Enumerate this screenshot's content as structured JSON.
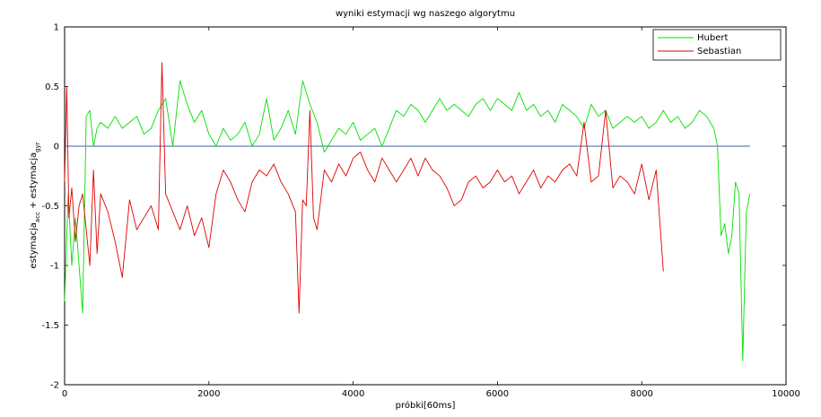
{
  "chart_data": {
    "type": "line",
    "title": "wyniki estymacji wg naszego algorytmu",
    "xlabel": "próbki[60ms]",
    "ylabel_main": "estymacja",
    "ylabel_sub1": "acc",
    "ylabel_plus": " + estymacja",
    "ylabel_sub2": "gyr",
    "xlim": [
      0,
      10000
    ],
    "ylim": [
      -2,
      1
    ],
    "xticks": [
      0,
      2000,
      4000,
      6000,
      8000,
      10000
    ],
    "yticks": [
      -2,
      -1.5,
      -1,
      -0.5,
      0,
      0.5,
      1
    ],
    "xtick_labels": [
      "0",
      "2000",
      "4000",
      "6000",
      "8000",
      "10000"
    ],
    "ytick_labels": [
      "-2",
      "-1.5",
      "-1",
      "-0.5",
      "0",
      "0.5",
      "1"
    ],
    "legend_position": "top-right",
    "grid": false,
    "zero_line_color": "#3a5fa8",
    "series": [
      {
        "name": "Hubert",
        "color": "#00e000",
        "x": [
          0,
          50,
          100,
          150,
          200,
          250,
          300,
          350,
          400,
          450,
          500,
          600,
          700,
          800,
          900,
          1000,
          1100,
          1200,
          1300,
          1400,
          1500,
          1600,
          1700,
          1800,
          1900,
          2000,
          2100,
          2200,
          2300,
          2400,
          2500,
          2600,
          2700,
          2800,
          2900,
          3000,
          3100,
          3200,
          3300,
          3400,
          3500,
          3600,
          3700,
          3800,
          3900,
          4000,
          4100,
          4200,
          4300,
          4400,
          4500,
          4600,
          4700,
          4800,
          4900,
          5000,
          5100,
          5200,
          5300,
          5400,
          5500,
          5600,
          5700,
          5800,
          5900,
          6000,
          6100,
          6200,
          6300,
          6400,
          6500,
          6600,
          6700,
          6800,
          6900,
          7000,
          7100,
          7200,
          7300,
          7400,
          7500,
          7600,
          7700,
          7800,
          7900,
          8000,
          8100,
          8200,
          8300,
          8400,
          8500,
          8600,
          8700,
          8800,
          8900,
          9000,
          9050,
          9100,
          9150,
          9200,
          9250,
          9300,
          9350,
          9400,
          9450,
          9500
        ],
        "y": [
          -1.3,
          -0.4,
          -1.0,
          -0.6,
          -1.0,
          -1.4,
          0.25,
          0.3,
          0.0,
          0.15,
          0.2,
          0.15,
          0.25,
          0.15,
          0.2,
          0.25,
          0.1,
          0.15,
          0.3,
          0.4,
          0.0,
          0.55,
          0.35,
          0.2,
          0.3,
          0.1,
          0.0,
          0.15,
          0.05,
          0.1,
          0.2,
          0.0,
          0.1,
          0.4,
          0.05,
          0.15,
          0.3,
          0.1,
          0.55,
          0.35,
          0.2,
          -0.05,
          0.05,
          0.15,
          0.1,
          0.2,
          0.05,
          0.1,
          0.15,
          0.0,
          0.15,
          0.3,
          0.25,
          0.35,
          0.3,
          0.2,
          0.3,
          0.4,
          0.3,
          0.35,
          0.3,
          0.25,
          0.35,
          0.4,
          0.3,
          0.4,
          0.35,
          0.3,
          0.45,
          0.3,
          0.35,
          0.25,
          0.3,
          0.2,
          0.35,
          0.3,
          0.25,
          0.15,
          0.35,
          0.25,
          0.3,
          0.15,
          0.2,
          0.25,
          0.2,
          0.25,
          0.15,
          0.2,
          0.3,
          0.2,
          0.25,
          0.15,
          0.2,
          0.3,
          0.25,
          0.15,
          0.0,
          -0.75,
          -0.65,
          -0.9,
          -0.75,
          -0.3,
          -0.4,
          -1.8,
          -0.55,
          -0.4
        ]
      },
      {
        "name": "Sebastian",
        "color": "#e00000",
        "x": [
          0,
          30,
          60,
          100,
          150,
          200,
          250,
          300,
          350,
          400,
          450,
          500,
          600,
          700,
          800,
          900,
          1000,
          1100,
          1200,
          1300,
          1350,
          1400,
          1500,
          1600,
          1700,
          1800,
          1900,
          2000,
          2100,
          2200,
          2300,
          2400,
          2500,
          2600,
          2700,
          2800,
          2900,
          3000,
          3100,
          3200,
          3250,
          3300,
          3350,
          3400,
          3450,
          3500,
          3600,
          3700,
          3800,
          3900,
          4000,
          4100,
          4200,
          4300,
          4400,
          4500,
          4600,
          4700,
          4800,
          4900,
          5000,
          5100,
          5200,
          5300,
          5400,
          5500,
          5600,
          5700,
          5800,
          5900,
          6000,
          6100,
          6200,
          6300,
          6400,
          6500,
          6600,
          6700,
          6800,
          6900,
          7000,
          7100,
          7200,
          7300,
          7400,
          7500,
          7600,
          7700,
          7800,
          7900,
          8000,
          8100,
          8200,
          8300
        ],
        "y": [
          -0.3,
          0.5,
          -0.6,
          -0.35,
          -0.8,
          -0.5,
          -0.4,
          -0.7,
          -1.0,
          -0.2,
          -0.9,
          -0.4,
          -0.55,
          -0.8,
          -1.1,
          -0.45,
          -0.7,
          -0.6,
          -0.5,
          -0.7,
          0.7,
          -0.4,
          -0.55,
          -0.7,
          -0.5,
          -0.75,
          -0.6,
          -0.85,
          -0.4,
          -0.2,
          -0.3,
          -0.45,
          -0.55,
          -0.3,
          -0.2,
          -0.25,
          -0.15,
          -0.3,
          -0.4,
          -0.55,
          -1.4,
          -0.45,
          -0.5,
          0.3,
          -0.6,
          -0.7,
          -0.2,
          -0.3,
          -0.15,
          -0.25,
          -0.1,
          -0.05,
          -0.2,
          -0.3,
          -0.1,
          -0.2,
          -0.3,
          -0.2,
          -0.1,
          -0.25,
          -0.1,
          -0.2,
          -0.25,
          -0.35,
          -0.5,
          -0.45,
          -0.3,
          -0.25,
          -0.35,
          -0.3,
          -0.2,
          -0.3,
          -0.25,
          -0.4,
          -0.3,
          -0.2,
          -0.35,
          -0.25,
          -0.3,
          -0.2,
          -0.15,
          -0.25,
          0.2,
          -0.3,
          -0.25,
          0.3,
          -0.35,
          -0.25,
          -0.3,
          -0.4,
          -0.15,
          -0.45,
          -0.2,
          -1.05
        ]
      }
    ]
  }
}
